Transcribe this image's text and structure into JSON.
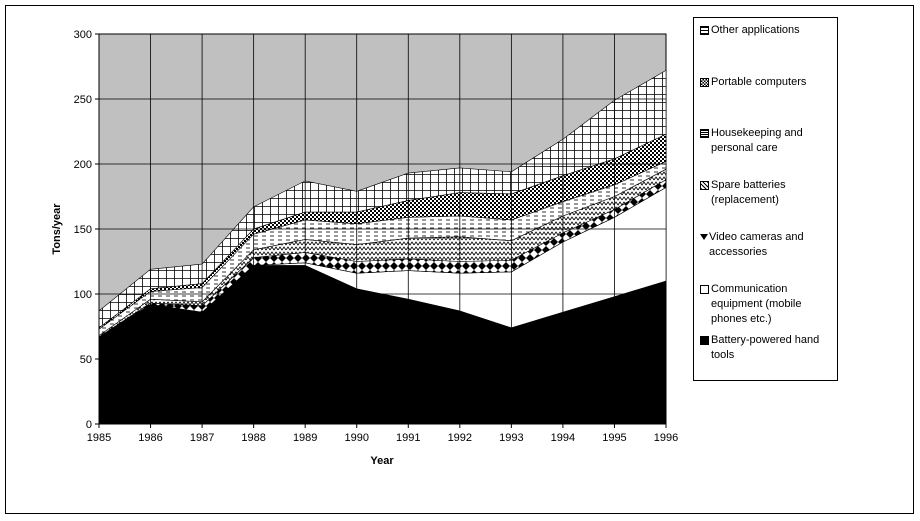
{
  "chart_data": {
    "type": "area",
    "stacked": true,
    "xlabel": "Year",
    "ylabel": "Tons/year",
    "ylim": [
      0,
      300
    ],
    "yticks": [
      "0",
      "50",
      "100",
      "150",
      "200",
      "250",
      "300"
    ],
    "x": [
      "1985",
      "1986",
      "1987",
      "1988",
      "1989",
      "1990",
      "1991",
      "1992",
      "1993",
      "1994",
      "1995",
      "1996"
    ],
    "grid": true,
    "plot_background": "#c0c0c0",
    "legend_position": "right",
    "series": [
      {
        "name": "Battery-powered hand tools",
        "values": [
          67,
          92,
          86,
          122,
          122,
          104,
          96,
          87,
          74,
          86,
          98,
          110
        ]
      },
      {
        "name": "Communication equipment (mobile phones etc.)",
        "values": [
          0,
          0,
          0,
          0,
          2,
          12,
          22,
          29,
          43,
          54,
          61,
          72
        ]
      },
      {
        "name": "Video cameras and accessories",
        "values": [
          0,
          1,
          5,
          6,
          8,
          9,
          9,
          9,
          9,
          7,
          6,
          6
        ]
      },
      {
        "name": "Spare batteries (replacement)",
        "values": [
          1,
          3,
          3,
          6,
          10,
          13,
          16,
          19,
          15,
          13,
          10,
          8
        ]
      },
      {
        "name": "Housekeeping and personal care",
        "values": [
          5,
          6,
          11,
          12,
          15,
          16,
          16,
          16,
          16,
          11,
          9,
          6
        ]
      },
      {
        "name": "Portable computers",
        "values": [
          1,
          2,
          3,
          4,
          6,
          9,
          13,
          18,
          20,
          20,
          20,
          21
        ]
      },
      {
        "name": "Other applications",
        "values": [
          13,
          15,
          15,
          17,
          24,
          16,
          21,
          19,
          17,
          28,
          45,
          49
        ]
      }
    ]
  }
}
